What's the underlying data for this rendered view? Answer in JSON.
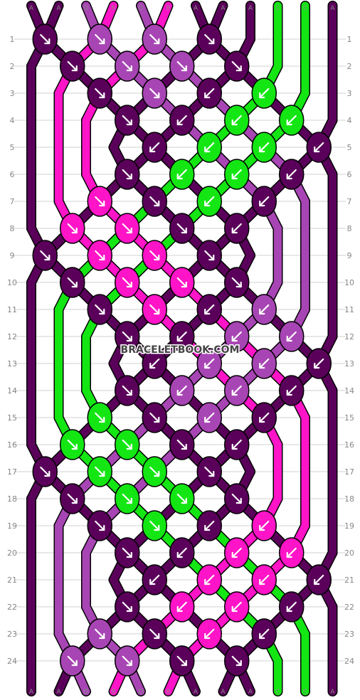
{
  "watermark": "BRACELETBOOK.COM",
  "colors": {
    "A": "#5a005a",
    "B": "#ff14c8",
    "C": "#14e614",
    "D": "#a845b4",
    "outline": "#000000",
    "grid": "#d0d0d0",
    "label": "#888888",
    "arrow": "#ffffff"
  },
  "top_labels": [
    "A",
    "A",
    "D",
    "B",
    "D",
    "B",
    "A",
    "A",
    "A",
    "C",
    "C",
    "A"
  ],
  "bottom_labels": [
    "A",
    "A",
    "D",
    "B",
    "D",
    "B",
    "A",
    "A",
    "A",
    "C",
    "C",
    "A"
  ],
  "row_labels": [
    "1",
    "2",
    "3",
    "4",
    "5",
    "6",
    "7",
    "8",
    "9",
    "10",
    "11",
    "12",
    "13",
    "14",
    "15",
    "16",
    "17",
    "18",
    "19",
    "20",
    "21",
    "22",
    "23",
    "24"
  ],
  "knots": [
    {
      "row": 1,
      "col": 1,
      "color": "A",
      "dir": "se"
    },
    {
      "row": 1,
      "col": 3,
      "color": "D",
      "dir": "se"
    },
    {
      "row": 1,
      "col": 5,
      "color": "D",
      "dir": "se"
    },
    {
      "row": 1,
      "col": 7,
      "color": "A",
      "dir": "se"
    },
    {
      "row": 2,
      "col": 2,
      "color": "A",
      "dir": "se"
    },
    {
      "row": 2,
      "col": 4,
      "color": "D",
      "dir": "se"
    },
    {
      "row": 2,
      "col": 6,
      "color": "D",
      "dir": "se"
    },
    {
      "row": 2,
      "col": 8,
      "color": "A",
      "dir": "se"
    },
    {
      "row": 3,
      "col": 3,
      "color": "A",
      "dir": "se"
    },
    {
      "row": 3,
      "col": 5,
      "color": "D",
      "dir": "se"
    },
    {
      "row": 3,
      "col": 7,
      "color": "A",
      "dir": "sw"
    },
    {
      "row": 3,
      "col": 9,
      "color": "C",
      "dir": "sw"
    },
    {
      "row": 4,
      "col": 4,
      "color": "A",
      "dir": "se"
    },
    {
      "row": 4,
      "col": 6,
      "color": "A",
      "dir": "sw"
    },
    {
      "row": 4,
      "col": 8,
      "color": "C",
      "dir": "sw"
    },
    {
      "row": 4,
      "col": 10,
      "color": "C",
      "dir": "sw"
    },
    {
      "row": 5,
      "col": 5,
      "color": "A",
      "dir": "sw"
    },
    {
      "row": 5,
      "col": 7,
      "color": "C",
      "dir": "sw"
    },
    {
      "row": 5,
      "col": 9,
      "color": "C",
      "dir": "sw"
    },
    {
      "row": 5,
      "col": 11,
      "color": "A",
      "dir": "sw"
    },
    {
      "row": 6,
      "col": 4,
      "color": "A",
      "dir": "se"
    },
    {
      "row": 6,
      "col": 6,
      "color": "C",
      "dir": "sw"
    },
    {
      "row": 6,
      "col": 8,
      "color": "C",
      "dir": "sw"
    },
    {
      "row": 6,
      "col": 10,
      "color": "A",
      "dir": "sw"
    },
    {
      "row": 7,
      "col": 3,
      "color": "B",
      "dir": "se"
    },
    {
      "row": 7,
      "col": 5,
      "color": "A",
      "dir": "se"
    },
    {
      "row": 7,
      "col": 7,
      "color": "C",
      "dir": "sw"
    },
    {
      "row": 7,
      "col": 9,
      "color": "A",
      "dir": "sw"
    },
    {
      "row": 8,
      "col": 2,
      "color": "B",
      "dir": "se"
    },
    {
      "row": 8,
      "col": 4,
      "color": "B",
      "dir": "se"
    },
    {
      "row": 8,
      "col": 6,
      "color": "A",
      "dir": "se"
    },
    {
      "row": 8,
      "col": 8,
      "color": "A",
      "dir": "sw"
    },
    {
      "row": 9,
      "col": 1,
      "color": "A",
      "dir": "se"
    },
    {
      "row": 9,
      "col": 3,
      "color": "B",
      "dir": "se"
    },
    {
      "row": 9,
      "col": 5,
      "color": "B",
      "dir": "se"
    },
    {
      "row": 9,
      "col": 7,
      "color": "A",
      "dir": "se"
    },
    {
      "row": 10,
      "col": 2,
      "color": "A",
      "dir": "se"
    },
    {
      "row": 10,
      "col": 4,
      "color": "B",
      "dir": "se"
    },
    {
      "row": 10,
      "col": 6,
      "color": "B",
      "dir": "se"
    },
    {
      "row": 10,
      "col": 8,
      "color": "A",
      "dir": "se"
    },
    {
      "row": 11,
      "col": 3,
      "color": "A",
      "dir": "se"
    },
    {
      "row": 11,
      "col": 5,
      "color": "B",
      "dir": "se"
    },
    {
      "row": 11,
      "col": 7,
      "color": "A",
      "dir": "sw"
    },
    {
      "row": 11,
      "col": 9,
      "color": "D",
      "dir": "sw"
    },
    {
      "row": 12,
      "col": 4,
      "color": "A",
      "dir": "se"
    },
    {
      "row": 12,
      "col": 6,
      "color": "A",
      "dir": "sw"
    },
    {
      "row": 12,
      "col": 8,
      "color": "D",
      "dir": "sw"
    },
    {
      "row": 12,
      "col": 10,
      "color": "D",
      "dir": "sw"
    },
    {
      "row": 13,
      "col": 5,
      "color": "A",
      "dir": "sw"
    },
    {
      "row": 13,
      "col": 7,
      "color": "D",
      "dir": "sw"
    },
    {
      "row": 13,
      "col": 9,
      "color": "D",
      "dir": "sw"
    },
    {
      "row": 13,
      "col": 11,
      "color": "A",
      "dir": "sw"
    },
    {
      "row": 14,
      "col": 4,
      "color": "A",
      "dir": "se"
    },
    {
      "row": 14,
      "col": 6,
      "color": "D",
      "dir": "sw"
    },
    {
      "row": 14,
      "col": 8,
      "color": "D",
      "dir": "sw"
    },
    {
      "row": 14,
      "col": 10,
      "color": "A",
      "dir": "sw"
    },
    {
      "row": 15,
      "col": 3,
      "color": "C",
      "dir": "se"
    },
    {
      "row": 15,
      "col": 5,
      "color": "A",
      "dir": "se"
    },
    {
      "row": 15,
      "col": 7,
      "color": "D",
      "dir": "sw"
    },
    {
      "row": 15,
      "col": 9,
      "color": "A",
      "dir": "sw"
    },
    {
      "row": 16,
      "col": 2,
      "color": "C",
      "dir": "se"
    },
    {
      "row": 16,
      "col": 4,
      "color": "C",
      "dir": "se"
    },
    {
      "row": 16,
      "col": 6,
      "color": "A",
      "dir": "se"
    },
    {
      "row": 16,
      "col": 8,
      "color": "A",
      "dir": "sw"
    },
    {
      "row": 17,
      "col": 1,
      "color": "A",
      "dir": "se"
    },
    {
      "row": 17,
      "col": 3,
      "color": "C",
      "dir": "se"
    },
    {
      "row": 17,
      "col": 5,
      "color": "C",
      "dir": "se"
    },
    {
      "row": 17,
      "col": 7,
      "color": "A",
      "dir": "se"
    },
    {
      "row": 18,
      "col": 2,
      "color": "A",
      "dir": "se"
    },
    {
      "row": 18,
      "col": 4,
      "color": "C",
      "dir": "se"
    },
    {
      "row": 18,
      "col": 6,
      "color": "C",
      "dir": "se"
    },
    {
      "row": 18,
      "col": 8,
      "color": "A",
      "dir": "se"
    },
    {
      "row": 19,
      "col": 3,
      "color": "A",
      "dir": "se"
    },
    {
      "row": 19,
      "col": 5,
      "color": "C",
      "dir": "se"
    },
    {
      "row": 19,
      "col": 7,
      "color": "A",
      "dir": "sw"
    },
    {
      "row": 19,
      "col": 9,
      "color": "B",
      "dir": "sw"
    },
    {
      "row": 20,
      "col": 4,
      "color": "A",
      "dir": "se"
    },
    {
      "row": 20,
      "col": 6,
      "color": "A",
      "dir": "sw"
    },
    {
      "row": 20,
      "col": 8,
      "color": "B",
      "dir": "sw"
    },
    {
      "row": 20,
      "col": 10,
      "color": "B",
      "dir": "sw"
    },
    {
      "row": 21,
      "col": 5,
      "color": "A",
      "dir": "sw"
    },
    {
      "row": 21,
      "col": 7,
      "color": "B",
      "dir": "sw"
    },
    {
      "row": 21,
      "col": 9,
      "color": "B",
      "dir": "sw"
    },
    {
      "row": 21,
      "col": 11,
      "color": "A",
      "dir": "sw"
    },
    {
      "row": 22,
      "col": 4,
      "color": "A",
      "dir": "se"
    },
    {
      "row": 22,
      "col": 6,
      "color": "B",
      "dir": "sw"
    },
    {
      "row": 22,
      "col": 8,
      "color": "B",
      "dir": "sw"
    },
    {
      "row": 22,
      "col": 10,
      "color": "A",
      "dir": "sw"
    },
    {
      "row": 23,
      "col": 3,
      "color": "D",
      "dir": "se"
    },
    {
      "row": 23,
      "col": 5,
      "color": "A",
      "dir": "se"
    },
    {
      "row": 23,
      "col": 7,
      "color": "B",
      "dir": "sw"
    },
    {
      "row": 23,
      "col": 9,
      "color": "A",
      "dir": "sw"
    },
    {
      "row": 24,
      "col": 2,
      "color": "D",
      "dir": "se"
    },
    {
      "row": 24,
      "col": 4,
      "color": "D",
      "dir": "se"
    },
    {
      "row": 24,
      "col": 6,
      "color": "A",
      "dir": "se"
    },
    {
      "row": 24,
      "col": 8,
      "color": "A",
      "dir": "se"
    }
  ]
}
